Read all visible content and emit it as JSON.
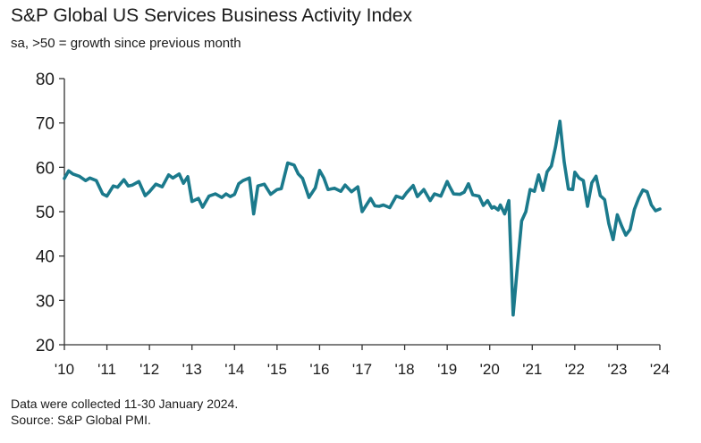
{
  "header": {
    "title": "S&P Global US Services Business Activity Index",
    "subtitle": "sa, >50 = growth since previous month"
  },
  "footer": {
    "note": "Data were collected 11-30 January 2024.",
    "source": "Source: S&P Global PMI."
  },
  "colors": {
    "line": "#1b7a8c",
    "axis": "#333333"
  },
  "chart_data": {
    "type": "line",
    "title": "S&P Global US Services Business Activity Index",
    "subtitle": "sa, >50 = growth since previous month",
    "xlabel": "",
    "ylabel": "",
    "ylim": [
      20,
      80
    ],
    "yticks": [
      20,
      30,
      40,
      50,
      60,
      70,
      80
    ],
    "xlim": [
      2010.0,
      2024.0
    ],
    "xticks": [
      "'10",
      "'11",
      "'12",
      "'13",
      "'14",
      "'15",
      "'16",
      "'17",
      "'18",
      "'19",
      "'20",
      "'21",
      "'22",
      "'23",
      "'24"
    ],
    "grid": false,
    "legend": "none",
    "series": [
      {
        "name": "",
        "x": [
          2010.0,
          2010.1,
          2010.2,
          2010.35,
          2010.5,
          2010.6,
          2010.75,
          2010.9,
          2011.0,
          2011.15,
          2011.25,
          2011.4,
          2011.5,
          2011.6,
          2011.75,
          2011.9,
          2012.0,
          2012.15,
          2012.3,
          2012.45,
          2012.55,
          2012.7,
          2012.8,
          2012.9,
          2013.0,
          2013.15,
          2013.25,
          2013.4,
          2013.55,
          2013.7,
          2013.8,
          2013.9,
          2014.0,
          2014.1,
          2014.2,
          2014.35,
          2014.45,
          2014.55,
          2014.7,
          2014.85,
          2015.0,
          2015.1,
          2015.25,
          2015.4,
          2015.5,
          2015.6,
          2015.75,
          2015.9,
          2016.0,
          2016.1,
          2016.2,
          2016.35,
          2016.5,
          2016.6,
          2016.75,
          2016.9,
          2017.0,
          2017.1,
          2017.2,
          2017.3,
          2017.4,
          2017.5,
          2017.65,
          2017.8,
          2017.95,
          2018.05,
          2018.2,
          2018.3,
          2018.45,
          2018.6,
          2018.7,
          2018.85,
          2019.0,
          2019.05,
          2019.15,
          2019.3,
          2019.4,
          2019.5,
          2019.6,
          2019.75,
          2019.85,
          2019.95,
          2020.05,
          2020.1,
          2020.2,
          2020.25,
          2020.35,
          2020.45,
          2020.55,
          2020.65,
          2020.75,
          2020.85,
          2020.95,
          2021.05,
          2021.15,
          2021.25,
          2021.35,
          2021.45,
          2021.55,
          2021.65,
          2021.75,
          2021.85,
          2021.95,
          2022.0,
          2022.1,
          2022.2,
          2022.3,
          2022.4,
          2022.5,
          2022.6,
          2022.7,
          2022.8,
          2022.9,
          2023.0,
          2023.1,
          2023.2,
          2023.3,
          2023.4,
          2023.5,
          2023.6,
          2023.7,
          2023.8,
          2023.9,
          2024.0
        ],
        "values": [
          57.5,
          59.2,
          58.5,
          58.0,
          57.0,
          57.6,
          57.0,
          54.0,
          53.5,
          55.8,
          55.5,
          57.2,
          55.8,
          56.0,
          56.8,
          53.6,
          54.5,
          56.2,
          55.6,
          58.3,
          57.6,
          58.5,
          56.4,
          57.9,
          52.3,
          53.0,
          51.0,
          53.5,
          54.0,
          53.2,
          54.0,
          53.4,
          53.9,
          56.3,
          57.0,
          57.6,
          49.5,
          55.8,
          56.2,
          53.9,
          55.0,
          55.2,
          61.0,
          60.5,
          58.5,
          57.5,
          53.2,
          55.4,
          59.3,
          57.6,
          55.0,
          55.3,
          54.6,
          56.0,
          54.5,
          55.6,
          50.0,
          51.5,
          53.0,
          51.3,
          51.2,
          51.5,
          50.9,
          53.5,
          53.0,
          54.3,
          55.9,
          53.4,
          55.0,
          52.5,
          54.0,
          53.5,
          56.8,
          55.8,
          54.0,
          53.9,
          54.4,
          56.3,
          53.8,
          53.5,
          51.4,
          52.5,
          50.8,
          51.1,
          50.4,
          51.5,
          49.5,
          52.5,
          26.7,
          37.5,
          47.9,
          50.0,
          55.0,
          54.6,
          58.3,
          54.8,
          59.0,
          60.3,
          64.7,
          70.4,
          61.2,
          55.1,
          55.0,
          58.9,
          57.6,
          57.0,
          51.2,
          56.5,
          58.0,
          53.6,
          52.7,
          47.3,
          43.7,
          49.3,
          46.8,
          44.7,
          46.0,
          50.5,
          53.0,
          54.9,
          54.5,
          51.5,
          50.2,
          50.6
        ],
        "comment": ""
      }
    ]
  }
}
